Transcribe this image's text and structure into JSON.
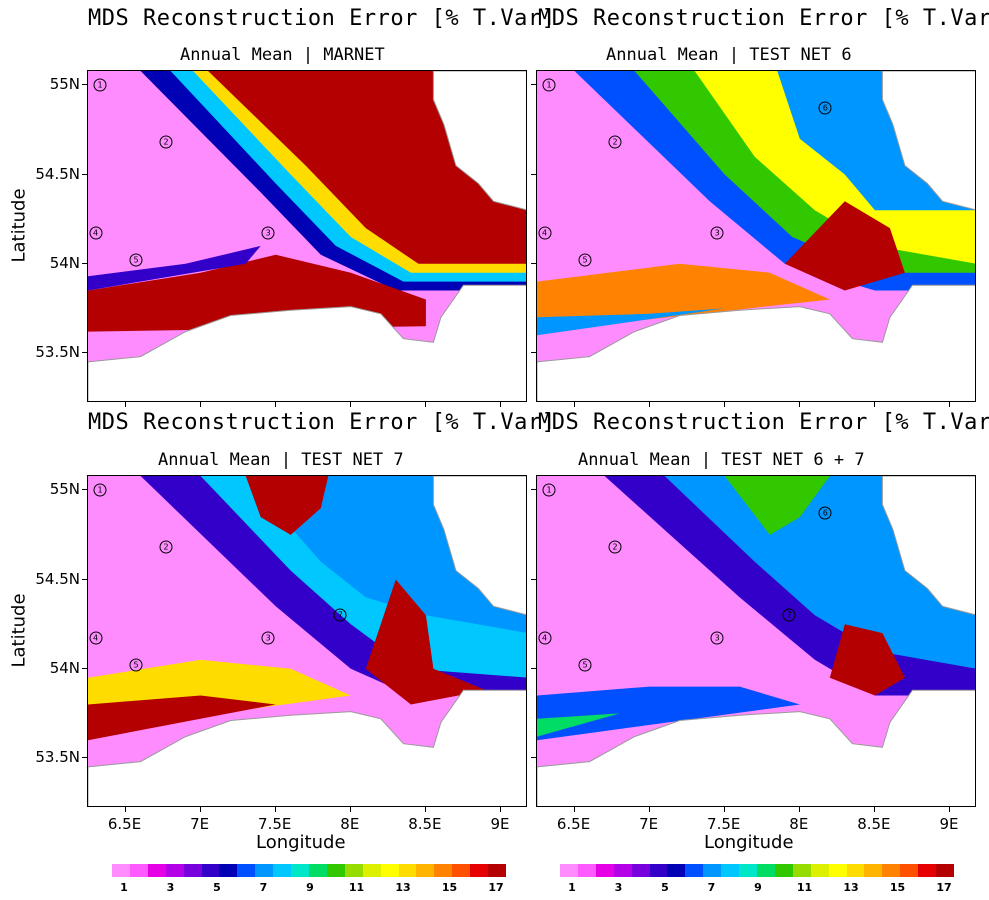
{
  "chart_data": [
    {
      "type": "heatmap",
      "title": "MDS Reconstruction Error [% T.Var]",
      "subtitle": "Annual Mean | MARNET",
      "xlabel": "",
      "ylabel": "Latitude",
      "x_ticks": [
        "6.5E",
        "7E",
        "7.5E",
        "8E",
        "8.5E",
        "9E"
      ],
      "y_ticks": [
        "55N",
        "54.5N",
        "54N",
        "53.5N"
      ],
      "stations": [
        {
          "id": "1",
          "lon": 6.33,
          "lat": 55.0
        },
        {
          "id": "2",
          "lon": 6.77,
          "lat": 54.68
        },
        {
          "id": "3",
          "lon": 7.45,
          "lat": 54.17
        },
        {
          "id": "4",
          "lon": 6.3,
          "lat": 54.17
        },
        {
          "id": "5",
          "lon": 6.57,
          "lat": 54.02
        }
      ]
    },
    {
      "type": "heatmap",
      "title": "MDS Reconstruction Error [% T.Var]",
      "subtitle": "Annual Mean | TEST NET 6",
      "xlabel": "",
      "ylabel": "",
      "x_ticks": [
        "6.5E",
        "7E",
        "7.5E",
        "8E",
        "8.5E",
        "9E"
      ],
      "y_ticks": [
        "55N",
        "54.5N",
        "54N",
        "53.5N"
      ],
      "stations": [
        {
          "id": "1",
          "lon": 6.33,
          "lat": 55.0
        },
        {
          "id": "2",
          "lon": 6.77,
          "lat": 54.68
        },
        {
          "id": "3",
          "lon": 7.45,
          "lat": 54.17
        },
        {
          "id": "4",
          "lon": 6.3,
          "lat": 54.17
        },
        {
          "id": "5",
          "lon": 6.57,
          "lat": 54.02
        },
        {
          "id": "6",
          "lon": 8.17,
          "lat": 54.87
        }
      ]
    },
    {
      "type": "heatmap",
      "title": "MDS Reconstruction Error [% T.Var]",
      "subtitle": "Annual Mean | TEST NET 7",
      "xlabel": "Longitude",
      "ylabel": "Latitude",
      "x_ticks": [
        "6.5E",
        "7E",
        "7.5E",
        "8E",
        "8.5E",
        "9E"
      ],
      "y_ticks": [
        "55N",
        "54.5N",
        "54N",
        "53.5N"
      ],
      "stations": [
        {
          "id": "1",
          "lon": 6.33,
          "lat": 55.0
        },
        {
          "id": "2",
          "lon": 6.77,
          "lat": 54.68
        },
        {
          "id": "3",
          "lon": 7.45,
          "lat": 54.17
        },
        {
          "id": "4",
          "lon": 6.3,
          "lat": 54.17
        },
        {
          "id": "5",
          "lon": 6.57,
          "lat": 54.02
        },
        {
          "id": "7",
          "lon": 7.93,
          "lat": 54.3
        }
      ]
    },
    {
      "type": "heatmap",
      "title": "MDS Reconstruction Error [% T.Var]",
      "subtitle": "Annual Mean | TEST NET 6 + 7",
      "xlabel": "Longitude",
      "ylabel": "",
      "x_ticks": [
        "6.5E",
        "7E",
        "7.5E",
        "8E",
        "8.5E",
        "9E"
      ],
      "y_ticks": [
        "55N",
        "54.5N",
        "54N",
        "53.5N"
      ],
      "stations": [
        {
          "id": "1",
          "lon": 6.33,
          "lat": 55.0
        },
        {
          "id": "2",
          "lon": 6.77,
          "lat": 54.68
        },
        {
          "id": "3",
          "lon": 7.45,
          "lat": 54.17
        },
        {
          "id": "4",
          "lon": 6.3,
          "lat": 54.17
        },
        {
          "id": "5",
          "lon": 6.57,
          "lat": 54.02
        },
        {
          "id": "6",
          "lon": 8.17,
          "lat": 54.87
        },
        {
          "id": "7",
          "lon": 7.93,
          "lat": 54.3
        }
      ]
    }
  ],
  "colorbar": {
    "labels": [
      "1",
      "3",
      "5",
      "7",
      "9",
      "11",
      "13",
      "15",
      "17"
    ],
    "colors": [
      "#ff8cff",
      "#ff5aff",
      "#e600e6",
      "#b400e6",
      "#7800dc",
      "#3200c8",
      "#0000b4",
      "#0050ff",
      "#0096ff",
      "#00c8ff",
      "#00e6c8",
      "#00dc64",
      "#32c800",
      "#96dc00",
      "#dcf000",
      "#ffff00",
      "#ffdc00",
      "#ffb400",
      "#ff8200",
      "#ff5000",
      "#e60000",
      "#b40000"
    ]
  }
}
